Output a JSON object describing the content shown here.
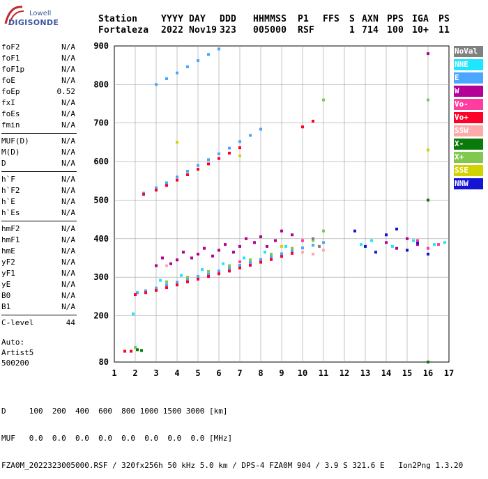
{
  "logo": {
    "line1": "Lowell",
    "line2": "DIGISONDE"
  },
  "header": {
    "labels": [
      "Station",
      "YYYY",
      "DAY",
      "DDD",
      "HHMMSS",
      "P1",
      "FFS",
      "S",
      "AXN",
      "PPS",
      "IGA",
      "PS"
    ],
    "values": [
      "Fortaleza",
      "2022",
      "Nov19",
      "323",
      "005000",
      "RSF",
      "1",
      "714",
      "100",
      "10+",
      "11"
    ]
  },
  "params": {
    "group1": [
      {
        "name": "foF2",
        "value": "N/A"
      },
      {
        "name": "foF1",
        "value": "N/A"
      },
      {
        "name": "foF1p",
        "value": "N/A"
      },
      {
        "name": "foE",
        "value": "N/A"
      },
      {
        "name": "foEp",
        "value": "0.52"
      },
      {
        "name": "fxI",
        "value": "N/A"
      },
      {
        "name": "foEs",
        "value": "N/A"
      },
      {
        "name": "fmin",
        "value": "N/A"
      }
    ],
    "group2": [
      {
        "name": "MUF(D)",
        "value": "N/A"
      },
      {
        "name": "M(D)",
        "value": "N/A"
      },
      {
        "name": "D",
        "value": "N/A"
      }
    ],
    "group3": [
      {
        "name": "h`F",
        "value": "N/A"
      },
      {
        "name": "h`F2",
        "value": "N/A"
      },
      {
        "name": "h`E",
        "value": "N/A"
      },
      {
        "name": "h`Es",
        "value": "N/A"
      }
    ],
    "group4": [
      {
        "name": "hmF2",
        "value": "N/A"
      },
      {
        "name": "hmF1",
        "value": "N/A"
      },
      {
        "name": "hmE",
        "value": "N/A"
      },
      {
        "name": "yF2",
        "value": "N/A"
      },
      {
        "name": "yF1",
        "value": "N/A"
      },
      {
        "name": "yE",
        "value": "N/A"
      },
      {
        "name": "B0",
        "value": "N/A"
      },
      {
        "name": "B1",
        "value": "N/A"
      }
    ],
    "group5": [
      {
        "name": "C-level",
        "value": "44"
      }
    ]
  },
  "auto": {
    "line1": "Auto:",
    "line2": "Artist5",
    "line3": "500200"
  },
  "legend": [
    {
      "label": "NoVal",
      "color": "#808080"
    },
    {
      "label": "NNE",
      "color": "#1ee6ff"
    },
    {
      "label": "E",
      "color": "#4aa6ff"
    },
    {
      "label": "W",
      "color": "#b40096"
    },
    {
      "label": "Vo-",
      "color": "#ff3ca0"
    },
    {
      "label": "Vo+",
      "color": "#ff0028"
    },
    {
      "label": "SSW",
      "color": "#ffaaaa"
    },
    {
      "label": "X-",
      "color": "#0a7a0a"
    },
    {
      "label": "X+",
      "color": "#82c850"
    },
    {
      "label": "SSE",
      "color": "#d2d200"
    },
    {
      "label": "NNW",
      "color": "#1414d2"
    }
  ],
  "footer": {
    "line1": "D     100  200  400  600  800 1000 1500 3000 [km]",
    "line2": "MUF   0.0  0.0  0.0  0.0  0.0  0.0  0.0  0.0 [MHz]",
    "line3": "FZA0M_2022323005000.RSF / 320fx256h 50 kHz 5.0 km / DPS-4 FZA0M 904 / 3.9 S 321.6 E   Ion2Png 1.3.20"
  },
  "chart_data": {
    "type": "scatter",
    "xlim": [
      1,
      17
    ],
    "ylim": [
      80,
      900
    ],
    "x_ticks": [
      1,
      2,
      3,
      4,
      5,
      6,
      7,
      8,
      9,
      10,
      11,
      12,
      13,
      14,
      15,
      16,
      17
    ],
    "y_ticks": [
      80,
      200,
      300,
      400,
      500,
      600,
      700,
      800,
      900
    ],
    "grid": true,
    "series": [
      {
        "name": "E",
        "color": "#4aa6ff",
        "points": [
          [
            2.1,
            260
          ],
          [
            2.5,
            265
          ],
          [
            3.0,
            272
          ],
          [
            3.5,
            280
          ],
          [
            4.0,
            287
          ],
          [
            4.5,
            295
          ],
          [
            5.0,
            302
          ],
          [
            5.5,
            308
          ],
          [
            6.0,
            316
          ],
          [
            6.5,
            323
          ],
          [
            7.0,
            331
          ],
          [
            7.5,
            338
          ],
          [
            8.0,
            346
          ],
          [
            8.5,
            353
          ],
          [
            9.0,
            361
          ],
          [
            9.5,
            368
          ],
          [
            10.0,
            376
          ],
          [
            10.5,
            383
          ],
          [
            11.0,
            390
          ],
          [
            2.4,
            518
          ],
          [
            3.0,
            532
          ],
          [
            3.5,
            545
          ],
          [
            4.0,
            560
          ],
          [
            4.5,
            575
          ],
          [
            5.0,
            590
          ],
          [
            5.5,
            605
          ],
          [
            6.0,
            620
          ],
          [
            6.5,
            635
          ],
          [
            7.0,
            652
          ],
          [
            7.5,
            668
          ],
          [
            8.0,
            684
          ],
          [
            3.0,
            800
          ],
          [
            3.5,
            815
          ],
          [
            4.0,
            830
          ],
          [
            4.5,
            846
          ],
          [
            5.0,
            862
          ],
          [
            5.5,
            878
          ],
          [
            6.0,
            892
          ]
        ]
      },
      {
        "name": "Vo+",
        "color": "#ff0028",
        "points": [
          [
            2.0,
            255
          ],
          [
            2.5,
            260
          ],
          [
            3.0,
            266
          ],
          [
            3.5,
            273
          ],
          [
            4.0,
            280
          ],
          [
            4.5,
            288
          ],
          [
            5.0,
            295
          ],
          [
            5.5,
            302
          ],
          [
            6.0,
            309
          ],
          [
            6.5,
            316
          ],
          [
            7.0,
            324
          ],
          [
            7.5,
            331
          ],
          [
            8.0,
            339
          ],
          [
            8.5,
            346
          ],
          [
            9.0,
            354
          ],
          [
            9.5,
            362
          ],
          [
            2.4,
            515
          ],
          [
            3.0,
            526
          ],
          [
            3.5,
            538
          ],
          [
            4.0,
            552
          ],
          [
            4.5,
            566
          ],
          [
            5.0,
            580
          ],
          [
            5.5,
            594
          ],
          [
            6.0,
            608
          ],
          [
            6.5,
            622
          ],
          [
            7.0,
            636
          ],
          [
            10.0,
            690
          ],
          [
            10.5,
            705
          ],
          [
            1.5,
            108
          ],
          [
            1.8,
            108
          ]
        ]
      },
      {
        "name": "W",
        "color": "#b40096",
        "points": [
          [
            3.0,
            330
          ],
          [
            3.3,
            350
          ],
          [
            3.7,
            335
          ],
          [
            4.0,
            345
          ],
          [
            4.3,
            365
          ],
          [
            4.7,
            350
          ],
          [
            5.0,
            360
          ],
          [
            5.3,
            375
          ],
          [
            5.7,
            355
          ],
          [
            6.0,
            370
          ],
          [
            6.3,
            385
          ],
          [
            6.7,
            365
          ],
          [
            7.0,
            380
          ],
          [
            7.3,
            400
          ],
          [
            7.7,
            390
          ],
          [
            8.0,
            405
          ],
          [
            8.3,
            380
          ],
          [
            8.7,
            395
          ],
          [
            9.0,
            420
          ],
          [
            9.5,
            410
          ],
          [
            14.0,
            390
          ],
          [
            14.5,
            375
          ],
          [
            15.0,
            400
          ],
          [
            15.5,
            385
          ],
          [
            16.0,
            880
          ]
        ]
      },
      {
        "name": "NNW",
        "color": "#1414d2",
        "points": [
          [
            12.5,
            420
          ],
          [
            13.0,
            380
          ],
          [
            13.5,
            365
          ],
          [
            14.0,
            410
          ],
          [
            14.5,
            425
          ],
          [
            15.0,
            370
          ],
          [
            15.5,
            390
          ],
          [
            16.0,
            360
          ]
        ]
      },
      {
        "name": "X+",
        "color": "#82c850",
        "points": [
          [
            2.0,
            118
          ],
          [
            3.5,
            288
          ],
          [
            4.5,
            300
          ],
          [
            5.5,
            315
          ],
          [
            6.5,
            330
          ],
          [
            7.5,
            345
          ],
          [
            8.5,
            360
          ],
          [
            9.5,
            375
          ],
          [
            10.5,
            395
          ],
          [
            11.0,
            420
          ],
          [
            11.0,
            760
          ],
          [
            16.0,
            760
          ]
        ]
      },
      {
        "name": "X-",
        "color": "#0a7a0a",
        "points": [
          [
            2.1,
            112
          ],
          [
            2.3,
            110
          ],
          [
            16.0,
            80
          ],
          [
            16.0,
            500
          ]
        ]
      },
      {
        "name": "NNE",
        "color": "#1ee6ff",
        "points": [
          [
            1.9,
            205
          ],
          [
            3.2,
            292
          ],
          [
            4.2,
            305
          ],
          [
            5.2,
            320
          ],
          [
            6.2,
            335
          ],
          [
            7.2,
            350
          ],
          [
            8.2,
            365
          ],
          [
            9.2,
            380
          ],
          [
            12.8,
            385
          ],
          [
            13.3,
            395
          ],
          [
            14.3,
            380
          ],
          [
            15.3,
            395
          ],
          [
            16.3,
            385
          ],
          [
            16.8,
            390
          ]
        ]
      },
      {
        "name": "SSW",
        "color": "#ffaaaa",
        "points": [
          [
            10.0,
            365
          ],
          [
            10.5,
            360
          ],
          [
            11.0,
            370
          ],
          [
            3.5,
            330
          ]
        ]
      },
      {
        "name": "Vo-",
        "color": "#ff3ca0",
        "points": [
          [
            15.5,
            395
          ],
          [
            16.0,
            375
          ],
          [
            16.5,
            385
          ],
          [
            10.0,
            395
          ],
          [
            7.0,
            340
          ]
        ]
      },
      {
        "name": "SSE",
        "color": "#d2d200",
        "points": [
          [
            4.0,
            650
          ],
          [
            7.0,
            615
          ],
          [
            9.0,
            380
          ],
          [
            16.0,
            630
          ]
        ]
      },
      {
        "name": "NoVal",
        "color": "#808080",
        "points": [
          [
            10.5,
            400
          ],
          [
            10.8,
            380
          ]
        ]
      }
    ]
  }
}
